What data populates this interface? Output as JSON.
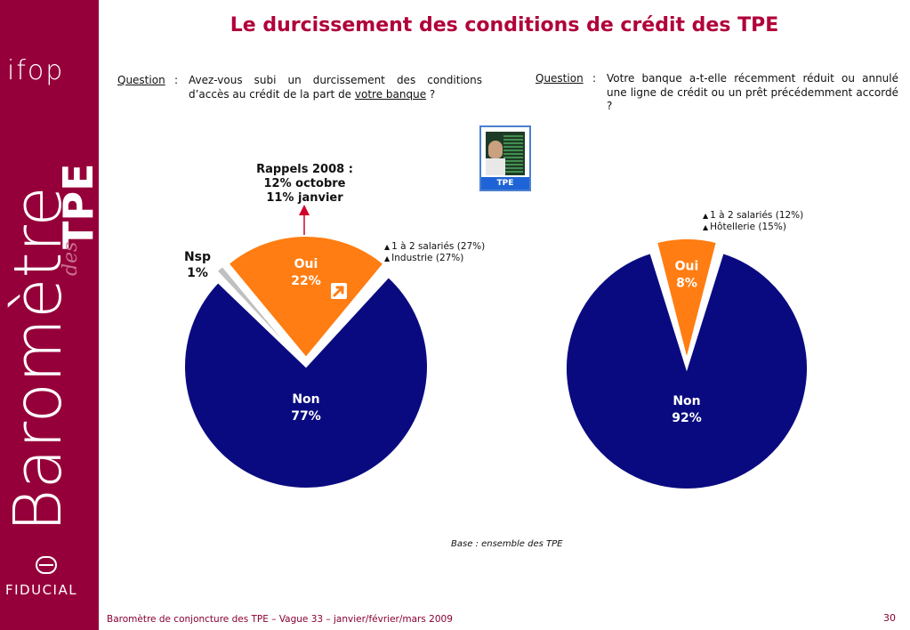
{
  "page": {
    "title": "Le durcissement des conditions de crédit des TPE",
    "footer": "Baromètre de conjoncture des TPE – Vague 33 – janvier/février/mars 2009",
    "page_number": "30",
    "base_note": "Base : ensemble des TPE"
  },
  "sidebar": {
    "logo": "ifop",
    "brand_big": "Baromètre",
    "brand_small": "des",
    "brand_tpe": "TPE",
    "partner": "FIDUCIAL"
  },
  "questions": {
    "left": {
      "label": "Question",
      "colon": ":",
      "text_before": "Avez-vous subi un durcissement des conditions d’accès au crédit de la part de ",
      "text_underlined": "votre banque",
      "text_after": " ?"
    },
    "right": {
      "label": "Question",
      "colon": ":",
      "text": "Votre banque a-t-elle récemment réduit ou annulé une ligne de crédit ou un prêt précédemment accordé ?"
    }
  },
  "tpe_badge": {
    "label": "TPE"
  },
  "annotations": {
    "rappels": [
      "Rappels 2008 :",
      "12% octobre",
      "11% janvier"
    ],
    "left_notes": [
      "1 à 2 salariés (27%)",
      "Industrie (27%)"
    ],
    "right_notes": [
      "1 à 2 salariés (12%)",
      "Hôtellerie (15%)"
    ],
    "nsp": [
      "Nsp",
      "1%"
    ],
    "trend_icon": "arrow-up-right-icon"
  },
  "colors": {
    "non": "#0a0a80",
    "oui": "#ff7d12",
    "nsp": "#c0c0c0",
    "accent": "#96003a",
    "title": "#b0003a"
  },
  "chart_data": [
    {
      "type": "pie",
      "slices": [
        {
          "label": "Non",
          "value": 77,
          "display": "77%"
        },
        {
          "label": "Oui",
          "value": 22,
          "display": "22%"
        },
        {
          "label": "Nsp",
          "value": 1,
          "display": "1%"
        }
      ]
    },
    {
      "type": "pie",
      "slices": [
        {
          "label": "Non",
          "value": 92,
          "display": "92%"
        },
        {
          "label": "Oui",
          "value": 8,
          "display": "8%"
        }
      ]
    }
  ]
}
